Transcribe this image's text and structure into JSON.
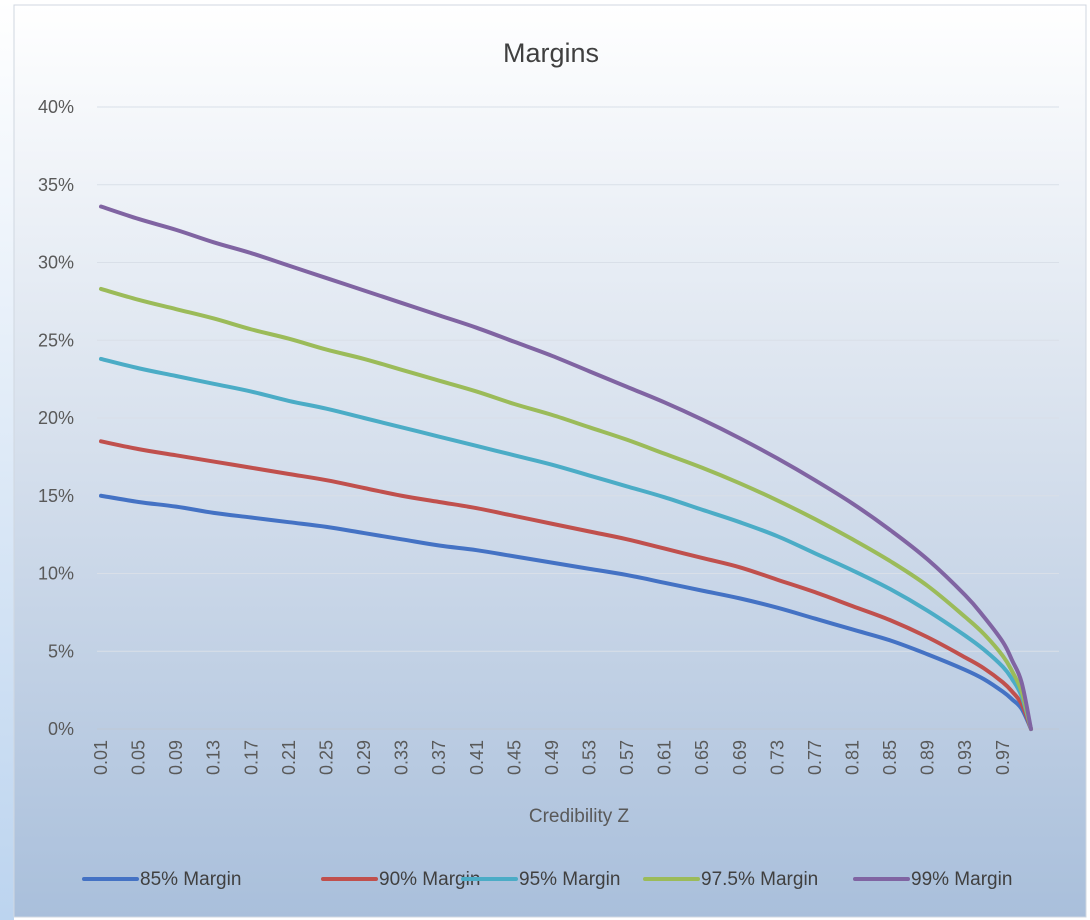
{
  "chart_data": {
    "type": "line",
    "title": "Margins",
    "xlabel": "Credibility Z",
    "ylabel": "",
    "ylim": [
      0,
      0.4
    ],
    "y_ticks": [
      0,
      0.05,
      0.1,
      0.15,
      0.2,
      0.25,
      0.3,
      0.35,
      0.4
    ],
    "y_tick_labels": [
      "0%",
      "5%",
      "10%",
      "15%",
      "20%",
      "25%",
      "30%",
      "35%",
      "40%"
    ],
    "x_range": [
      0.01,
      1.0
    ],
    "x_tick_labels": [
      "0.01",
      "0.05",
      "0.09",
      "0.13",
      "0.17",
      "0.21",
      "0.25",
      "0.29",
      "0.33",
      "0.37",
      "0.41",
      "0.45",
      "0.49",
      "0.53",
      "0.57",
      "0.61",
      "0.65",
      "0.69",
      "0.73",
      "0.77",
      "0.81",
      "0.85",
      "0.89",
      "0.93",
      "0.97"
    ],
    "grid": true,
    "legend_position": "bottom",
    "x": [
      0.01,
      0.05,
      0.09,
      0.13,
      0.17,
      0.21,
      0.25,
      0.29,
      0.33,
      0.37,
      0.41,
      0.45,
      0.49,
      0.53,
      0.57,
      0.61,
      0.65,
      0.69,
      0.73,
      0.77,
      0.81,
      0.85,
      0.89,
      0.93,
      0.95,
      0.97,
      0.98,
      0.99,
      1.0
    ],
    "series": [
      {
        "name": "85% Margin",
        "color": "#4472C4",
        "values": [
          0.15,
          0.146,
          0.143,
          0.139,
          0.136,
          0.133,
          0.13,
          0.126,
          0.122,
          0.118,
          0.115,
          0.111,
          0.107,
          0.103,
          0.099,
          0.094,
          0.089,
          0.084,
          0.078,
          0.071,
          0.064,
          0.057,
          0.048,
          0.038,
          0.032,
          0.024,
          0.019,
          0.013,
          0.0
        ]
      },
      {
        "name": "90% Margin",
        "color": "#C0504D",
        "values": [
          0.185,
          0.18,
          0.176,
          0.172,
          0.168,
          0.164,
          0.16,
          0.155,
          0.15,
          0.146,
          0.142,
          0.137,
          0.132,
          0.127,
          0.122,
          0.116,
          0.11,
          0.104,
          0.096,
          0.088,
          0.079,
          0.07,
          0.059,
          0.046,
          0.039,
          0.03,
          0.024,
          0.016,
          0.0
        ]
      },
      {
        "name": "95% Margin",
        "color": "#4BACC6",
        "values": [
          0.238,
          0.232,
          0.227,
          0.222,
          0.217,
          0.211,
          0.206,
          0.2,
          0.194,
          0.188,
          0.182,
          0.176,
          0.17,
          0.163,
          0.156,
          0.149,
          0.141,
          0.133,
          0.124,
          0.113,
          0.102,
          0.09,
          0.076,
          0.06,
          0.051,
          0.04,
          0.032,
          0.021,
          0.0
        ]
      },
      {
        "name": "97.5% Margin",
        "color": "#9BBB59",
        "values": [
          0.283,
          0.276,
          0.27,
          0.264,
          0.257,
          0.251,
          0.244,
          0.238,
          0.231,
          0.224,
          0.217,
          0.209,
          0.202,
          0.194,
          0.186,
          0.177,
          0.168,
          0.158,
          0.147,
          0.135,
          0.122,
          0.108,
          0.092,
          0.072,
          0.061,
          0.047,
          0.037,
          0.024,
          0.0
        ]
      },
      {
        "name": "99% Margin",
        "color": "#8064A2",
        "values": [
          0.336,
          0.328,
          0.321,
          0.313,
          0.306,
          0.298,
          0.29,
          0.282,
          0.274,
          0.266,
          0.258,
          0.249,
          0.24,
          0.23,
          0.22,
          0.21,
          0.199,
          0.187,
          0.174,
          0.16,
          0.145,
          0.128,
          0.109,
          0.086,
          0.072,
          0.056,
          0.044,
          0.03,
          0.0
        ]
      }
    ]
  }
}
